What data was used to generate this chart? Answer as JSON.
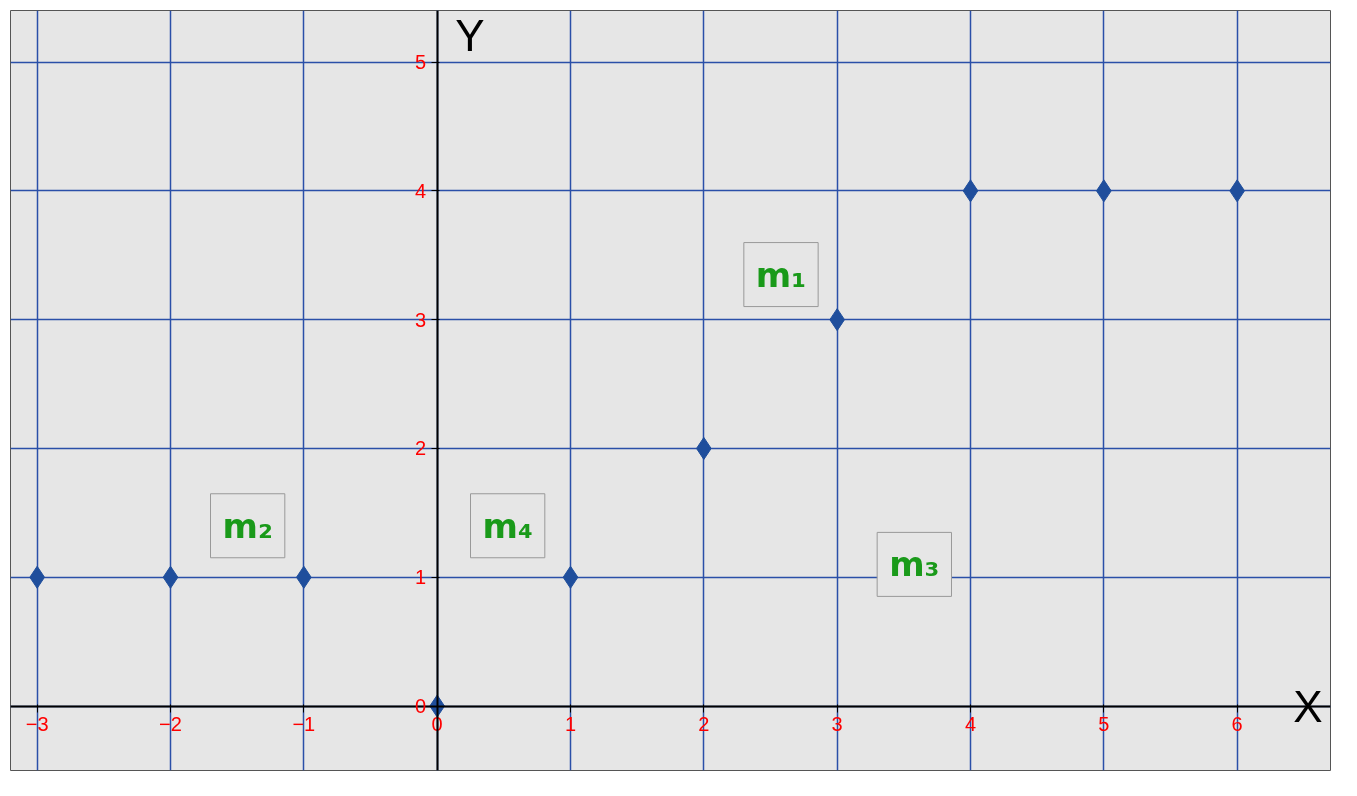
{
  "chart_data": {
    "type": "scatter",
    "xlabel": "X",
    "ylabel": "Y",
    "x": [
      -3,
      -2,
      -1,
      0,
      1,
      2,
      3,
      4,
      5,
      6
    ],
    "series": [
      {
        "color": "#1f4e9c",
        "values": [
          1,
          1,
          1,
          0,
          1,
          2,
          3,
          4,
          4,
          4
        ]
      }
    ],
    "marker": "diamond",
    "grid": true,
    "xlim": [
      -3.2,
      6.7
    ],
    "ylim": [
      -0.5,
      5.4
    ],
    "xticks": [
      -3,
      -2,
      -1,
      0,
      1,
      2,
      3,
      4,
      5,
      6
    ],
    "yticks": [
      0,
      1,
      2,
      3,
      4,
      5
    ],
    "annotations": [
      "m₁",
      "m₂",
      "m₄",
      "m₃"
    ]
  }
}
